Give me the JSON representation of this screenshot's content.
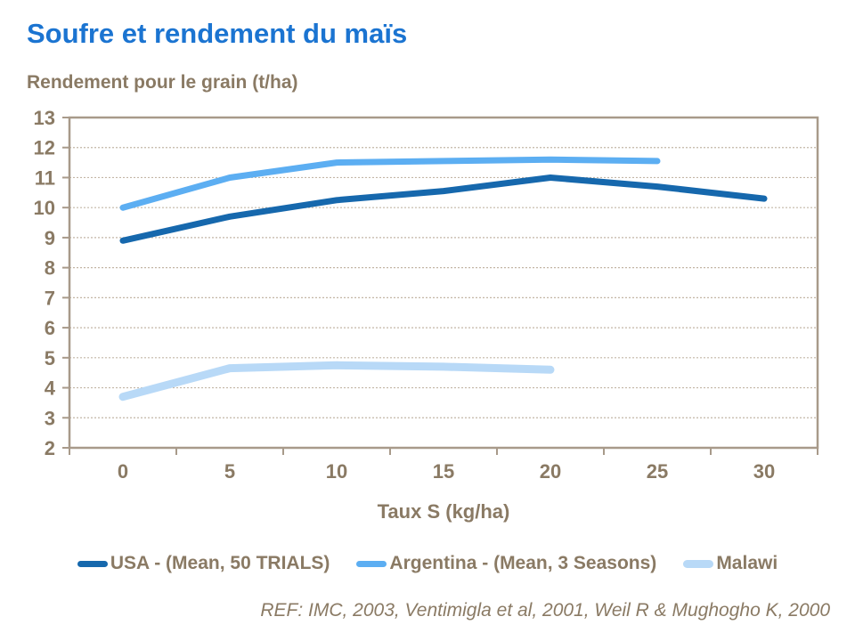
{
  "page": {
    "title": "Soufre et rendement du maïs",
    "subtitle": "Rendement pour le grain (t/ha)",
    "reference": "REF: IMC,  2003, Ventimigla et al, 2001, Weil R & Mughogho K, 2000"
  },
  "colors": {
    "title_blue": "#1b74d1",
    "text_brown": "#8a7a64",
    "grid": "#c3b6a6",
    "axis_border": "#a89a8a",
    "background": "#ffffff"
  },
  "chart_data": {
    "type": "line",
    "x": [
      0,
      5,
      10,
      15,
      20,
      25,
      30
    ],
    "xlabel": "Taux S (kg/ha)",
    "ylabel": "Rendement pour le grain (t/ha)",
    "ylim": [
      2,
      13
    ],
    "ytick_step": 1,
    "grid": true,
    "legend_position": "bottom",
    "series": [
      {
        "id": "usa",
        "name": "USA - (Mean, 50 TRIALS)",
        "color": "#1668ad",
        "stroke_width": 7,
        "values": [
          8.9,
          9.7,
          10.25,
          10.55,
          11.0,
          10.7,
          10.3
        ]
      },
      {
        "id": "argentina",
        "name": "Argentina - (Mean, 3 Seasons)",
        "color": "#5caef2",
        "stroke_width": 7,
        "values": [
          10.0,
          11.0,
          11.5,
          11.55,
          11.6,
          11.55,
          null
        ]
      },
      {
        "id": "malawi",
        "name": "Malawi",
        "color": "#b8d9f7",
        "stroke_width": 9,
        "values": [
          3.7,
          4.65,
          4.75,
          4.7,
          4.6,
          null,
          null
        ]
      }
    ]
  }
}
